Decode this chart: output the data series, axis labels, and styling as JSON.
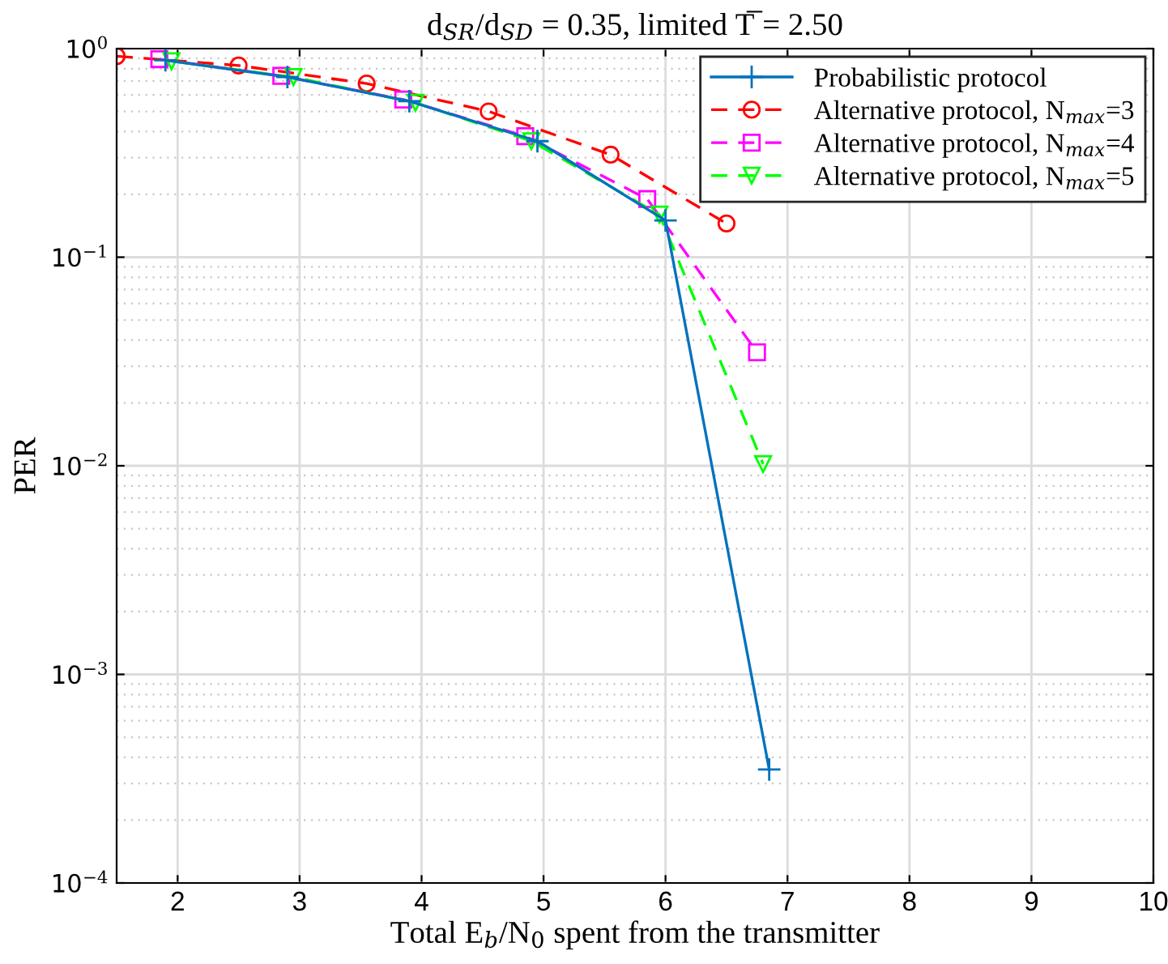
{
  "chart_data": {
    "type": "line",
    "title": "d$_{SR}$/d$_{SD}$ = 0.35, limited T̅ = 2.50",
    "xlabel": "Total E$_{b}$/N$_{0}$ spent from the transmitter",
    "ylabel": "PER",
    "log": "y",
    "grid": true,
    "legend": "top right",
    "xlim": [
      1.5,
      10
    ],
    "xticks": [
      2,
      3,
      4,
      5,
      6,
      7,
      8,
      9,
      10
    ],
    "ylim": [
      0.0001,
      1
    ],
    "yticks": [
      {
        "value": 0.0001,
        "label": "10$^{−4}$"
      },
      {
        "value": 0.001,
        "label": "10$^{−3}$"
      },
      {
        "value": 0.01,
        "label": "10$^{−2}$"
      },
      {
        "value": 0.1,
        "label": "10$^{−1}$"
      },
      {
        "value": 1,
        "label": "10$^{0}$"
      }
    ],
    "series": [
      {
        "name": "Probabilistic protocol",
        "color": "#0072bd",
        "marker": "cross",
        "line_style": "solid",
        "x": [
          1.9,
          2.9,
          3.9,
          4.95,
          6.0,
          6.85
        ],
        "values": [
          0.88,
          0.73,
          0.56,
          0.36,
          0.15,
          0.00035
        ]
      },
      {
        "name": "Alternative protocol, N$_{max}$=3",
        "color": "#ff0000",
        "marker": "circle",
        "line_style": "dashed",
        "x": [
          1.5,
          2.5,
          3.55,
          4.55,
          5.55,
          6.5
        ],
        "values": [
          0.92,
          0.83,
          0.68,
          0.5,
          0.31,
          0.145
        ]
      },
      {
        "name": "Alternative protocol, N$_{max}$=4",
        "color": "#ff00ff",
        "marker": "square",
        "line_style": "dashed",
        "x": [
          1.85,
          2.85,
          3.85,
          4.85,
          5.85,
          6.75
        ],
        "values": [
          0.89,
          0.74,
          0.57,
          0.38,
          0.19,
          0.035
        ]
      },
      {
        "name": "Alternative protocol, N$_{max}$=5",
        "color": "#00ff00",
        "marker": "triangle",
        "line_style": "dashed",
        "x": [
          1.95,
          2.95,
          3.95,
          4.9,
          5.95,
          6.8
        ],
        "values": [
          0.87,
          0.73,
          0.55,
          0.36,
          0.16,
          0.0102
        ]
      }
    ]
  }
}
